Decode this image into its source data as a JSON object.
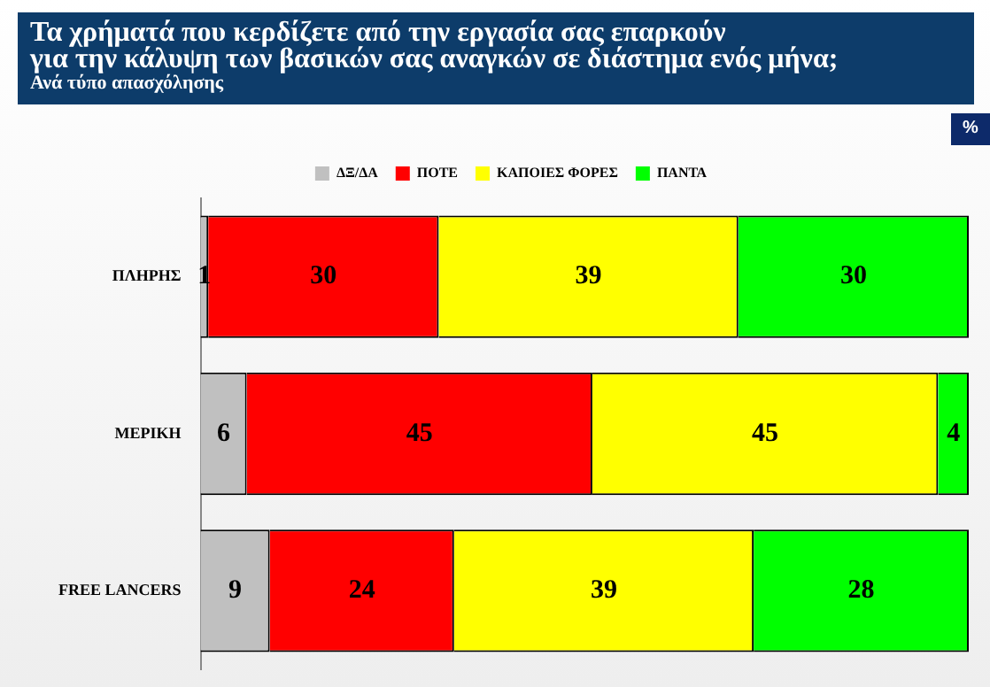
{
  "chart_data": {
    "type": "bar",
    "orientation": "horizontal",
    "stacked": true,
    "title": "Τα χρήματά που κερδίζετε από την εργασία σας επαρκούν\nγια την κάλυψη των βασικών σας αναγκών σε διάστημα ενός μήνα;",
    "subtitle": "Ανά τύπο απασχόλησης",
    "annotations": [
      "%"
    ],
    "categories": [
      "ΠΛΗΡΗΣ",
      "ΜΕΡΙΚΗ",
      "FREE LANCERS"
    ],
    "series": [
      {
        "name": "ΔΞ/ΔΑ",
        "color": "#c0c0c0",
        "values": [
          1,
          6,
          9
        ]
      },
      {
        "name": "ΠΟΤΕ",
        "color": "#ff0000",
        "values": [
          30,
          45,
          24
        ]
      },
      {
        "name": "ΚΑΠΟΙΕΣ ΦΟΡΕΣ",
        "color": "#ffff00",
        "values": [
          39,
          45,
          39
        ]
      },
      {
        "name": "ΠΑΝΤΑ",
        "color": "#00ff00",
        "values": [
          30,
          4,
          28
        ]
      }
    ],
    "xlim": [
      0,
      100
    ],
    "tick_labels": "y",
    "data_labels": true,
    "legend": "top",
    "grid": false
  }
}
